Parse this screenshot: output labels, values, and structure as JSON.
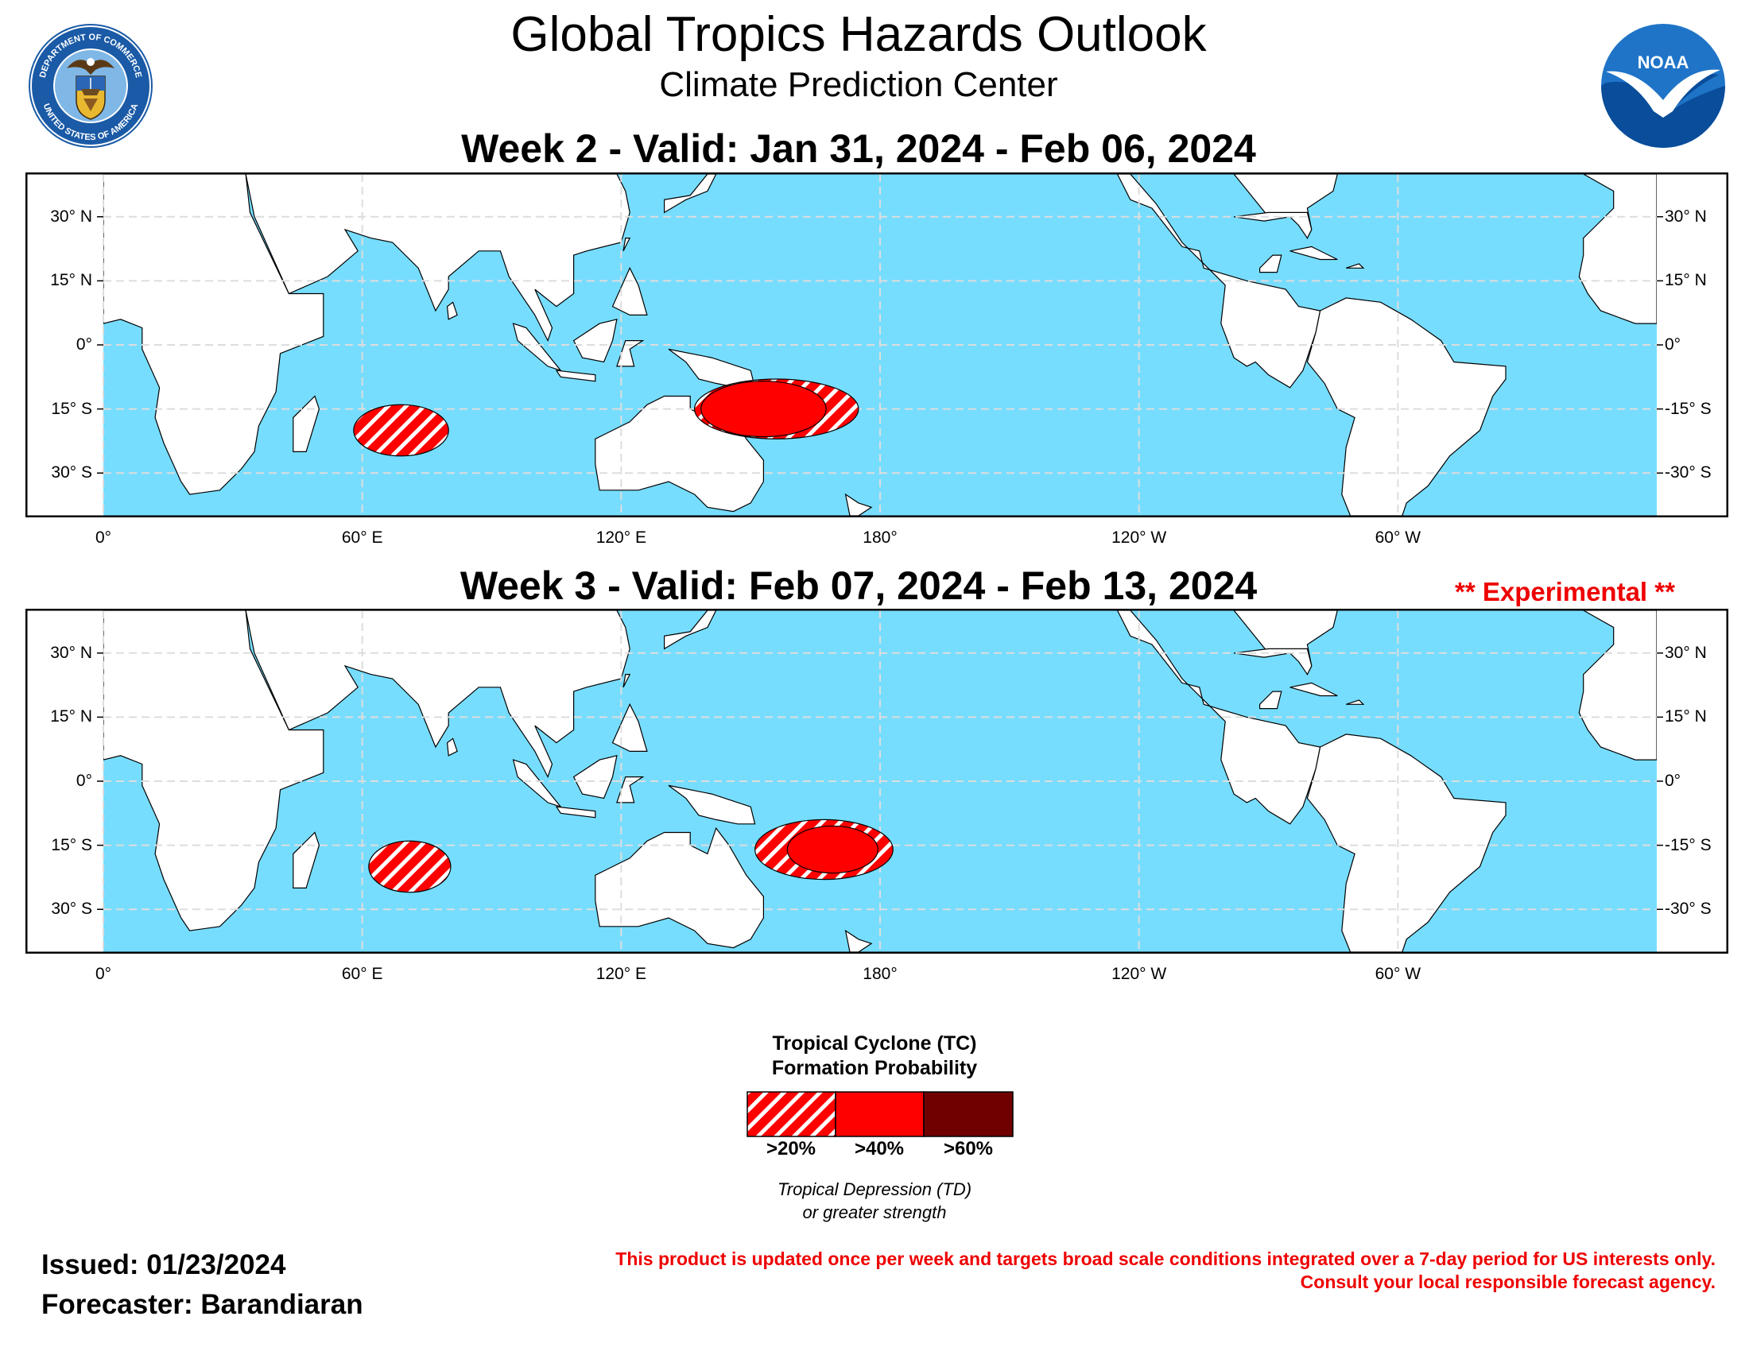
{
  "header": {
    "title": "Global Tropics Hazards Outlook",
    "subtitle": "Climate Prediction Center",
    "left_logo": {
      "name": "commerce-seal",
      "ring_text_top": "DEPARTMENT OF COMMERCE",
      "ring_text_bottom": "UNITED STATES OF AMERICA"
    },
    "right_logo": {
      "name": "noaa-logo",
      "text": "NOAA"
    }
  },
  "maps": [
    {
      "id": "week2",
      "title": "Week 2 - Valid: Jan 31, 2024 - Feb 06, 2024",
      "areas": [
        {
          "category": ">20%",
          "region": "South Indian Ocean",
          "center": [
            69,
            -20
          ],
          "extent_lon": [
            59,
            81
          ],
          "extent_lat": [
            -26,
            -14
          ]
        },
        {
          "category": ">20%",
          "region": "Southwest Pacific",
          "center": [
            156,
            -15
          ],
          "extent_lon": [
            137,
            175
          ],
          "extent_lat": [
            -22,
            -8
          ]
        },
        {
          "category": ">40%",
          "region": "Coral Sea / Gulf of Carpentaria",
          "center": [
            153,
            -15
          ],
          "extent_lon": [
            139,
            168
          ],
          "extent_lat": [
            -21,
            -8
          ]
        }
      ]
    },
    {
      "id": "week3",
      "title": "Week 3 - Valid: Feb 07, 2024 - Feb 13, 2024",
      "experimental_label": "** Experimental **",
      "areas": [
        {
          "category": ">20%",
          "region": "South Indian Ocean",
          "center": [
            71,
            -20
          ],
          "extent_lon": [
            62,
            81
          ],
          "extent_lat": [
            -26,
            -14
          ]
        },
        {
          "category": ">20%",
          "region": "Southwest Pacific",
          "center": [
            167,
            -16
          ],
          "extent_lon": [
            151,
            183
          ],
          "extent_lat": [
            -23,
            -9
          ]
        },
        {
          "category": ">40%",
          "region": "Coral Sea / Vanuatu",
          "center": [
            169,
            -16
          ],
          "extent_lon": [
            159,
            180
          ],
          "extent_lat": [
            -21,
            -10
          ]
        }
      ]
    }
  ],
  "axes": {
    "lon_ticks": [
      "0°",
      "60° E",
      "120° E",
      "180°",
      "120° W",
      "60° W"
    ],
    "lon_values": [
      0,
      60,
      120,
      180,
      240,
      300
    ],
    "lat_left": [
      "30° N",
      "15° N",
      "0°",
      "15° S",
      "30° S"
    ],
    "lat_right": [
      "30° N",
      "15° N",
      "0°",
      "-15° S",
      "-30° S"
    ],
    "lat_values": [
      30,
      15,
      0,
      -15,
      -30
    ],
    "lon_range": [
      0,
      360
    ],
    "lat_range": [
      -40,
      40
    ]
  },
  "legend": {
    "title_line1": "Tropical Cyclone (TC)",
    "title_line2": "Formation Probability",
    "categories": [
      {
        "label": ">20%",
        "color": "#ff0000",
        "style": "hatched"
      },
      {
        "label": ">40%",
        "color": "#ff0000",
        "style": "solid"
      },
      {
        "label": ">60%",
        "color": "#700000",
        "style": "solid"
      }
    ],
    "sub_line1": "Tropical Depression (TD)",
    "sub_line2": "or greater strength"
  },
  "footer": {
    "issued": "Issued: 01/23/2024",
    "forecaster": "Forecaster: Barandiaran",
    "disclaimer_line1": "This product is updated once per week and targets broad scale conditions integrated over a 7-day period for US interests only.",
    "disclaimer_line2": "Consult your local responsible forecast agency."
  },
  "colors": {
    "ocean": "#77ddff",
    "land": "#ffffff",
    "hazard_red": "#ff0000",
    "hazard_dark": "#700000",
    "experimental_red": "#ee0000"
  }
}
